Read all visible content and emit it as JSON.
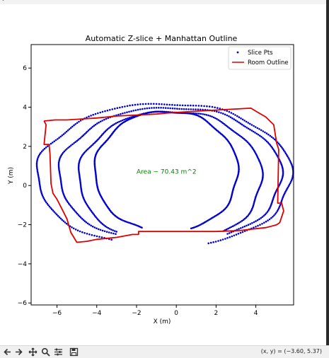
{
  "window": {
    "title_glyph": "‹"
  },
  "toolbar": {
    "icons": [
      "back-arrow-icon",
      "forward-arrow-icon",
      "pan-icon",
      "zoom-icon",
      "subplots-config-icon",
      "save-icon"
    ],
    "coord_readout": "(x, y) = (−3.60, 5.37)"
  },
  "colors": {
    "points": "#0000cc",
    "outline": "#dd0000",
    "annotation": "#008000"
  },
  "chart_data": {
    "type": "scatter",
    "title": "Automatic Z-slice + Manhattan Outline",
    "xlabel": "X (m)",
    "ylabel": "Y (m)",
    "xlim": [
      -7.3,
      5.9
    ],
    "ylim": [
      -6.1,
      7.2
    ],
    "xticks": [
      -6,
      -4,
      -2,
      0,
      2,
      4
    ],
    "yticks": [
      -6,
      -4,
      -2,
      0,
      2,
      4,
      6
    ],
    "xtick_labels": [
      "−6",
      "−4",
      "−2",
      "0",
      "2",
      "4"
    ],
    "ytick_labels": [
      "−6",
      "−4",
      "−2",
      "0",
      "2",
      "4",
      "6"
    ],
    "grid": false,
    "legend": {
      "placement": "top-right",
      "entries": [
        {
          "label": "Slice Pts",
          "marker": "point"
        },
        {
          "label": "Room Outline",
          "marker": "line"
        }
      ]
    },
    "annotation": {
      "text": "Area ~ 70.43 m^2",
      "x": -2.0,
      "y": 0.6
    },
    "series": [
      {
        "name": "Slice Pts",
        "kind": "points",
        "rings": [
          {
            "center": [
              -0.5,
              0.7
            ],
            "rx": 3.6,
            "ry": 3.1,
            "gap_deg": [
              250,
              290
            ]
          },
          {
            "center": [
              -0.3,
              0.4
            ],
            "rx": 4.6,
            "ry": 3.4,
            "gap_deg": [
              235,
              305
            ]
          },
          {
            "center": [
              -0.3,
              0.5
            ],
            "rx": 5.6,
            "ry": 3.5,
            "gap_deg": [
              240,
              300
            ]
          },
          {
            "center": [
              -0.6,
              0.5
            ],
            "rx": 6.4,
            "ry": 3.7,
            "gap_deg": [
              245,
              290
            ]
          }
        ]
      },
      {
        "name": "Room Outline",
        "kind": "line",
        "x": [
          -6.65,
          -6.55,
          -6.65,
          -6.4,
          -6.35,
          -6.3,
          -6.2,
          -6.0,
          -5.8,
          -5.5,
          -5.3,
          -5.0,
          -4.5,
          -4.0,
          -3.0,
          -2.2,
          -1.9,
          -1.9,
          0.0,
          2.0,
          3.2,
          3.6,
          4.5,
          4.9,
          5.05,
          5.2,
          5.4,
          5.3,
          5.1,
          5.15,
          5.05,
          4.9,
          4.5,
          4.0,
          3.75,
          1.0,
          -0.5,
          -1.0,
          -2.0,
          -3.0,
          -4.0,
          -5.5,
          -6.1,
          -6.6,
          -6.65
        ],
        "y": [
          3.3,
          3.1,
          2.1,
          2.1,
          1.6,
          0.1,
          -0.4,
          -0.7,
          -1.1,
          -1.7,
          -2.4,
          -2.9,
          -2.85,
          -2.75,
          -2.65,
          -2.5,
          -2.5,
          -2.35,
          -2.35,
          -2.35,
          -2.3,
          -2.25,
          -2.15,
          -2.05,
          -2.0,
          -1.9,
          -1.3,
          -0.9,
          -0.9,
          1.85,
          2.15,
          3.1,
          3.5,
          3.8,
          3.95,
          3.8,
          3.7,
          3.65,
          3.6,
          3.55,
          3.45,
          3.35,
          3.35,
          3.3,
          3.3
        ]
      }
    ]
  }
}
